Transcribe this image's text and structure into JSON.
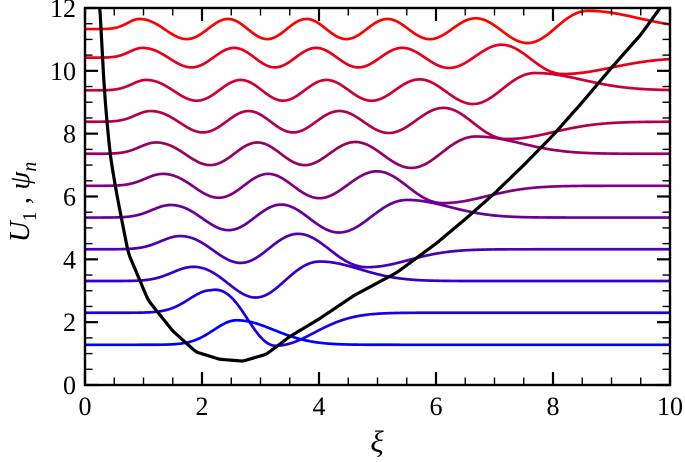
{
  "chart_data": {
    "type": "line",
    "title": "",
    "xlabel": "ξ",
    "ylabel_parts": {
      "U": "U",
      "U_sub": "1",
      "comma": " , ",
      "psi": "ψ",
      "psi_sub": "n"
    },
    "xlim": [
      0,
      10
    ],
    "ylim": [
      0,
      12
    ],
    "x_major_ticks": [
      0,
      2,
      4,
      6,
      8,
      10
    ],
    "y_major_ticks": [
      0,
      2,
      4,
      6,
      8,
      10,
      12
    ],
    "minor_tick_step": 0.5,
    "grid": "off",
    "legend": "none",
    "frame_color": "#000000",
    "potential": {
      "label": "U1",
      "color": "#000000",
      "points": [
        [
          0.24,
          12.6
        ],
        [
          0.27,
          11.6
        ],
        [
          0.3,
          10.3
        ],
        [
          0.34,
          9.1
        ],
        [
          0.43,
          7.3
        ],
        [
          0.55,
          6.0
        ],
        [
          0.74,
          4.2
        ],
        [
          1.08,
          2.7
        ],
        [
          1.5,
          1.72
        ],
        [
          1.9,
          1.05
        ],
        [
          2.3,
          0.82
        ],
        [
          2.7,
          0.76
        ],
        [
          3.1,
          0.98
        ],
        [
          3.5,
          1.54
        ],
        [
          4.0,
          2.1
        ],
        [
          4.6,
          2.85
        ],
        [
          5.33,
          3.58
        ],
        [
          6.0,
          4.5
        ],
        [
          6.5,
          5.28
        ],
        [
          7.0,
          6.1
        ],
        [
          7.5,
          7.0
        ],
        [
          8.0,
          7.95
        ],
        [
          8.5,
          9.0
        ],
        [
          9.0,
          10.1
        ],
        [
          9.5,
          11.15
        ],
        [
          9.85,
          12.05
        ],
        [
          10.0,
          12.5
        ]
      ]
    },
    "wavefunctions": {
      "label": "psi_n",
      "count": 11,
      "energies": [
        1.28,
        2.3,
        3.31,
        4.32,
        5.33,
        6.34,
        7.36,
        8.38,
        9.38,
        10.42,
        11.33
      ],
      "amp_inner": [
        0.78,
        0.42,
        0.44,
        0.42,
        0.4,
        0.38,
        0.36,
        0.34,
        0.33,
        0.31,
        0.32
      ],
      "amp_outer": [
        0.78,
        1.05,
        0.62,
        0.57,
        0.56,
        0.55,
        0.55,
        0.55,
        0.55,
        0.52,
        0.58
      ],
      "color_low_n": "#0000ff",
      "color_high_n": "#ff0000"
    }
  }
}
